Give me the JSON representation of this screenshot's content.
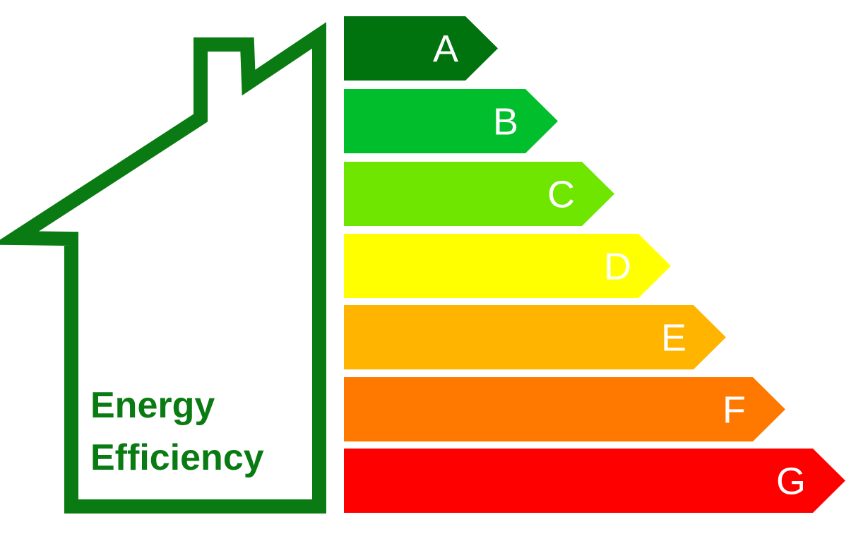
{
  "title_lines": [
    "Energy",
    "Efficiency"
  ],
  "house_color": "#0a7a12",
  "letter_color": "#ffffff",
  "ratings": [
    {
      "label": "A",
      "color": "#00720e"
    },
    {
      "label": "B",
      "color": "#00be2c"
    },
    {
      "label": "C",
      "color": "#6ee600"
    },
    {
      "label": "D",
      "color": "#ffff00"
    },
    {
      "label": "E",
      "color": "#ffb400"
    },
    {
      "label": "F",
      "color": "#ff7800"
    },
    {
      "label": "G",
      "color": "#ff0000"
    }
  ]
}
